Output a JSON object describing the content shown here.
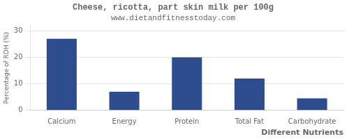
{
  "chart_data": {
    "type": "bar",
    "title": "Cheese, ricotta, part skin milk per 100g",
    "subtitle": "www.dietandfitnesstoday.com",
    "xlabel": "Different Nutrients",
    "ylabel": "Percentage of RDH (%)",
    "categories": [
      "Calcium",
      "Energy",
      "Protein",
      "Total Fat",
      "Carbohydrate"
    ],
    "values": [
      27,
      7,
      20,
      12,
      4.5
    ],
    "color": "#2e4d8e",
    "ylim": [
      0,
      32
    ],
    "yticks": [
      0,
      10,
      20,
      30
    ],
    "grid": true
  }
}
